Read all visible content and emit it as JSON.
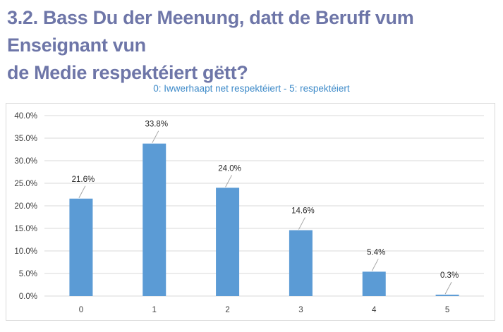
{
  "page": {
    "heading_line1": "3.2. Bass Du der Meenung, datt de Beruff vum Enseignant vun",
    "heading_line2": "de Medie respektéiert gëtt?"
  },
  "chart_data": {
    "type": "bar",
    "title": "0: Iwwerhaapt net respektéiert - 5: respektéiert",
    "xlabel": "",
    "ylabel": "",
    "categories": [
      "0",
      "1",
      "2",
      "3",
      "4",
      "5"
    ],
    "values": [
      21.6,
      33.8,
      24.0,
      14.6,
      5.4,
      0.3
    ],
    "value_labels": [
      "21.6%",
      "33.8%",
      "24.0%",
      "14.6%",
      "5.4%",
      "0.3%"
    ],
    "ylim": [
      0,
      40
    ],
    "yticks": [
      0,
      5,
      10,
      15,
      20,
      25,
      30,
      35,
      40
    ],
    "ytick_labels": [
      "0.0%",
      "5.0%",
      "10.0%",
      "15.0%",
      "20.0%",
      "25.0%",
      "30.0%",
      "35.0%",
      "40.0%"
    ],
    "grid": true,
    "bar_color": "#5b9bd5",
    "grid_color": "#d9d9d9"
  }
}
